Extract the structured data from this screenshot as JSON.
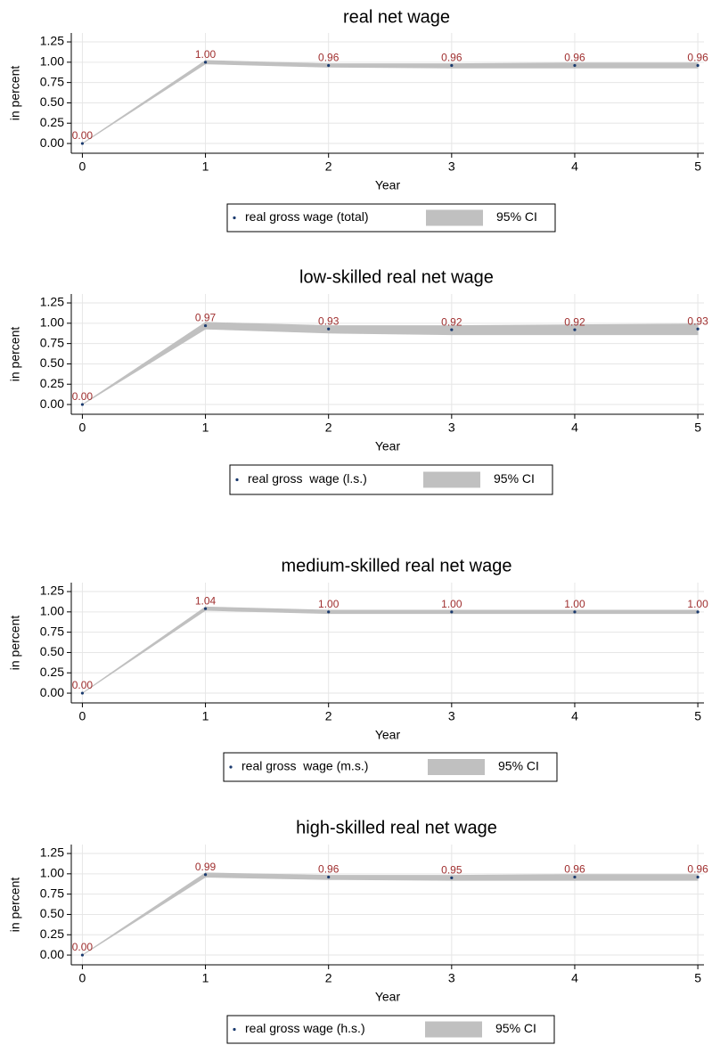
{
  "chart_data": [
    {
      "type": "line",
      "title": "real net wage",
      "xlabel": "Year",
      "ylabel": "in percent",
      "x": [
        0,
        1,
        2,
        3,
        4,
        5
      ],
      "xlim": [
        -0.09,
        5.05
      ],
      "xticks": [
        0,
        1,
        2,
        3,
        4,
        5
      ],
      "ylim": [
        -0.12,
        1.36
      ],
      "yticks": [
        {
          "value": 0,
          "label": "0.00"
        },
        {
          "value": 0.25,
          "label": "0.25"
        },
        {
          "value": 0.5,
          "label": "0.50"
        },
        {
          "value": 0.75,
          "label": "0.75"
        },
        {
          "value": 1,
          "label": "1.00"
        },
        {
          "value": 1.25,
          "label": "1.25"
        }
      ],
      "grid": true,
      "series": [
        {
          "name": "real gross wage (total)",
          "color": "#1a3a6e",
          "values": [
            0,
            1,
            0.96,
            0.96,
            0.96,
            0.96
          ],
          "value_labels": [
            "0.00",
            "1.00",
            "0.96",
            "0.96",
            "0.96",
            "0.96"
          ]
        }
      ],
      "ci": {
        "name": "95% CI",
        "color": "#c0c0c0",
        "lower": [
          0,
          0.98,
          0.94,
          0.93,
          0.93,
          0.93
        ],
        "upper": [
          0,
          1.02,
          0.98,
          0.98,
          0.99,
          0.99
        ]
      }
    },
    {
      "type": "line",
      "title": "low-skilled real net wage",
      "xlabel": "Year",
      "ylabel": "in percent",
      "x": [
        0,
        1,
        2,
        3,
        4,
        5
      ],
      "xlim": [
        -0.09,
        5.05
      ],
      "xticks": [
        0,
        1,
        2,
        3,
        4,
        5
      ],
      "ylim": [
        -0.12,
        1.36
      ],
      "yticks": [
        {
          "value": 0,
          "label": "0.00"
        },
        {
          "value": 0.25,
          "label": "0.25"
        },
        {
          "value": 0.5,
          "label": "0.50"
        },
        {
          "value": 0.75,
          "label": "0.75"
        },
        {
          "value": 1,
          "label": "1.00"
        },
        {
          "value": 1.25,
          "label": "1.25"
        }
      ],
      "grid": true,
      "series": [
        {
          "name": "real gross  wage (l.s.)",
          "color": "#1a3a6e",
          "values": [
            0,
            0.97,
            0.93,
            0.92,
            0.92,
            0.93
          ],
          "value_labels": [
            "0.00",
            "0.97",
            "0.93",
            "0.92",
            "0.92",
            "0.93"
          ]
        }
      ],
      "ci": {
        "name": "95% CI",
        "color": "#c0c0c0",
        "lower": [
          0,
          0.93,
          0.88,
          0.86,
          0.86,
          0.86
        ],
        "upper": [
          0,
          1.01,
          0.97,
          0.97,
          0.98,
          0.99
        ]
      }
    },
    {
      "type": "line",
      "title": "medium-skilled real net wage",
      "xlabel": "Year",
      "ylabel": "in percent",
      "x": [
        0,
        1,
        2,
        3,
        4,
        5
      ],
      "xlim": [
        -0.09,
        5.05
      ],
      "xticks": [
        0,
        1,
        2,
        3,
        4,
        5
      ],
      "ylim": [
        -0.12,
        1.36
      ],
      "yticks": [
        {
          "value": 0,
          "label": "0.00"
        },
        {
          "value": 0.25,
          "label": "0.25"
        },
        {
          "value": 0.5,
          "label": "0.50"
        },
        {
          "value": 0.75,
          "label": "0.75"
        },
        {
          "value": 1,
          "label": "1.00"
        },
        {
          "value": 1.25,
          "label": "1.25"
        }
      ],
      "grid": true,
      "series": [
        {
          "name": "real gross  wage (m.s.)",
          "color": "#1a3a6e",
          "values": [
            0,
            1.04,
            1,
            1,
            1,
            1
          ],
          "value_labels": [
            "0.00",
            "1.04",
            "1.00",
            "1.00",
            "1.00",
            "1.00"
          ]
        }
      ],
      "ci": {
        "name": "95% CI",
        "color": "#c0c0c0",
        "lower": [
          0,
          1.02,
          0.98,
          0.98,
          0.98,
          0.98
        ],
        "upper": [
          0,
          1.06,
          1.02,
          1.02,
          1.02,
          1.02
        ]
      }
    },
    {
      "type": "line",
      "title": "high-skilled real net wage",
      "xlabel": "Year",
      "ylabel": "in percent",
      "x": [
        0,
        1,
        2,
        3,
        4,
        5
      ],
      "xlim": [
        -0.09,
        5.05
      ],
      "xticks": [
        0,
        1,
        2,
        3,
        4,
        5
      ],
      "ylim": [
        -0.12,
        1.36
      ],
      "yticks": [
        {
          "value": 0,
          "label": "0.00"
        },
        {
          "value": 0.25,
          "label": "0.25"
        },
        {
          "value": 0.5,
          "label": "0.50"
        },
        {
          "value": 0.75,
          "label": "0.75"
        },
        {
          "value": 1,
          "label": "1.00"
        },
        {
          "value": 1.25,
          "label": "1.25"
        }
      ],
      "grid": true,
      "series": [
        {
          "name": "real gross wage (h.s.)",
          "color": "#1a3a6e",
          "values": [
            0,
            0.99,
            0.96,
            0.95,
            0.96,
            0.96
          ],
          "value_labels": [
            "0.00",
            "0.99",
            "0.96",
            "0.95",
            "0.96",
            "0.96"
          ]
        }
      ],
      "ci": {
        "name": "95% CI",
        "color": "#c0c0c0",
        "lower": [
          0,
          0.96,
          0.93,
          0.92,
          0.92,
          0.92
        ],
        "upper": [
          0,
          1.01,
          0.98,
          0.98,
          0.99,
          0.99
        ]
      }
    }
  ]
}
